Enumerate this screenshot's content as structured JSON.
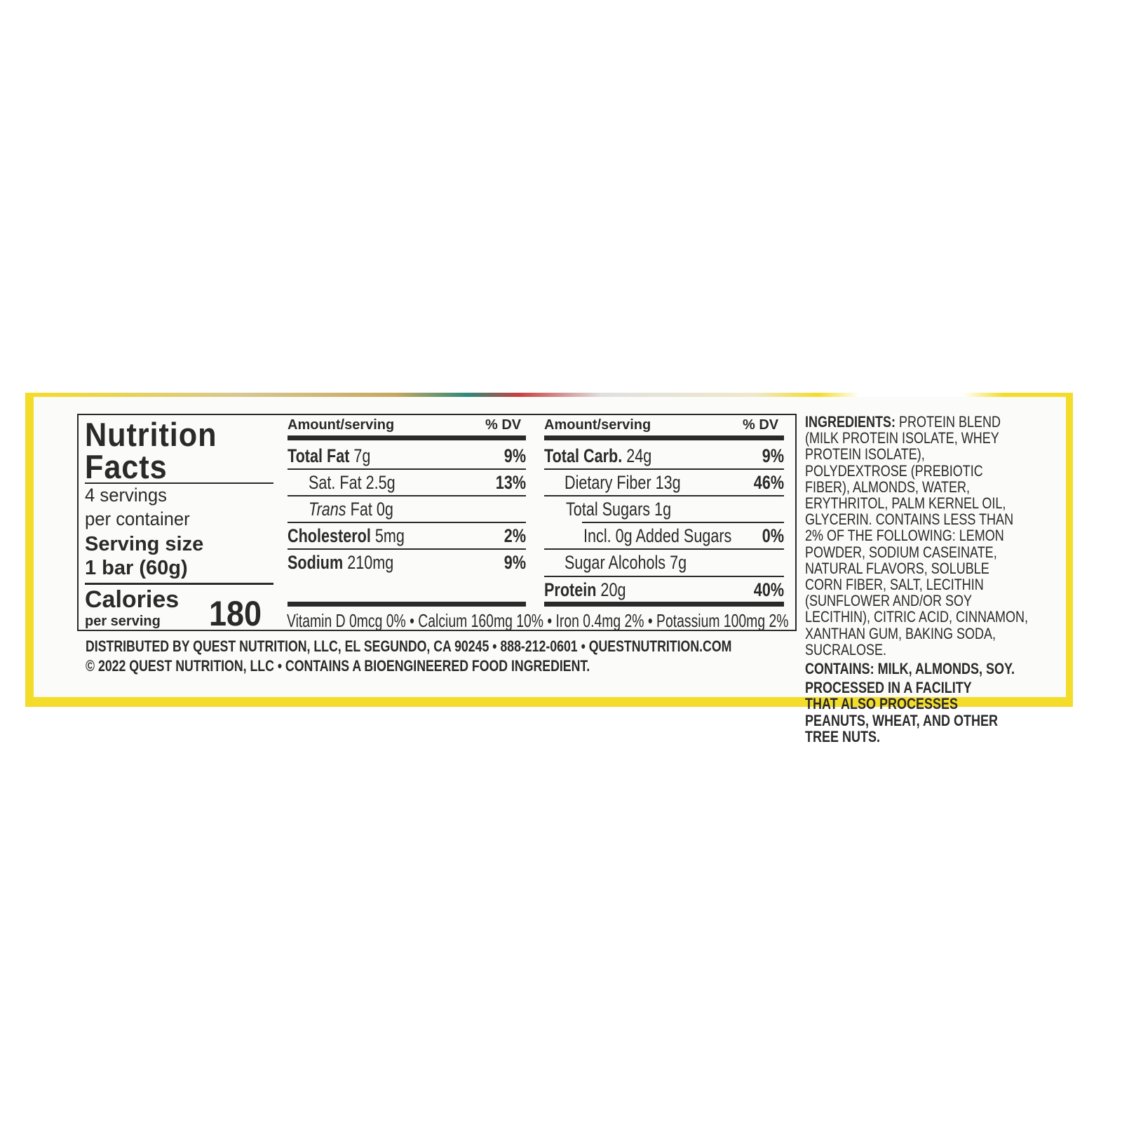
{
  "package_colors": {
    "yellow": "#f4dc2a",
    "text": "#2a2a2a"
  },
  "nutrition": {
    "title_line1": "Nutrition",
    "title_line2": "Facts",
    "servings_line1": "4 servings",
    "servings_line2": "per container",
    "serving_size_label": "Serving size",
    "serving_size_value": "1 bar (60g)",
    "calories_label": "Calories",
    "calories_sub": "per serving",
    "calories_value": "180",
    "col_header_amount": "Amount/serving",
    "col_header_dv": "% DV",
    "left_rows": [
      {
        "name": "Total Fat",
        "amount": "7g",
        "dv": "9%"
      },
      {
        "name": "Sat. Fat",
        "amount": "2.5g",
        "dv": "13%"
      },
      {
        "name": "Trans",
        "amount": "Fat 0g",
        "dv": ""
      },
      {
        "name": "Cholesterol",
        "amount": "5mg",
        "dv": "2%"
      },
      {
        "name": "Sodium",
        "amount": "210mg",
        "dv": "9%"
      }
    ],
    "right_rows": [
      {
        "name": "Total Carb.",
        "amount": "24g",
        "dv": "9%"
      },
      {
        "name": "Dietary Fiber",
        "amount": "13g",
        "dv": "46%"
      },
      {
        "name": "Total Sugars",
        "amount": "1g",
        "dv": ""
      },
      {
        "name": "Incl. 0g Added Sugars",
        "amount": "",
        "dv": "0%"
      },
      {
        "name": "Sugar Alcohols",
        "amount": "7g",
        "dv": ""
      },
      {
        "name": "Protein",
        "amount": "20g",
        "dv": "40%"
      }
    ],
    "micronutrients": "Vitamin D 0mcg 0% • Calcium 160mg 10% • Iron 0.4mg 2% • Potassium 100mg 2%"
  },
  "footer": {
    "line1": "DISTRIBUTED BY QUEST NUTRITION, LLC, EL SEGUNDO, CA 90245 • 888-212-0601 • QUESTNUTRITION.COM",
    "line2": "© 2022 QUEST NUTRITION, LLC • CONTAINS A BIOENGINEERED FOOD INGREDIENT."
  },
  "ingredients": {
    "label": "INGREDIENTS:",
    "text": "PROTEIN BLEND (MILK PROTEIN ISOLATE, WHEY PROTEIN ISOLATE), POLYDEXTROSE (PREBIOTIC FIBER), ALMONDS, WATER, ERYTHRITOL, PALM KERNEL OIL, GLYCERIN. CONTAINS LESS THAN 2% OF THE FOLLOWING: LEMON POWDER, SODIUM CASEINATE, NATURAL FLAVORS, SOLUBLE CORN FIBER, SALT, LECITHIN (SUNFLOWER AND/OR SOY LECITHIN), CITRIC ACID, CINNAMON, XANTHAN GUM, BAKING SODA, SUCRALOSE.",
    "contains": "CONTAINS: MILK, ALMONDS, SOY.",
    "facility": "PROCESSED IN A FACILITY THAT ALSO PROCESSES PEANUTS, WHEAT, AND OTHER TREE NUTS."
  }
}
